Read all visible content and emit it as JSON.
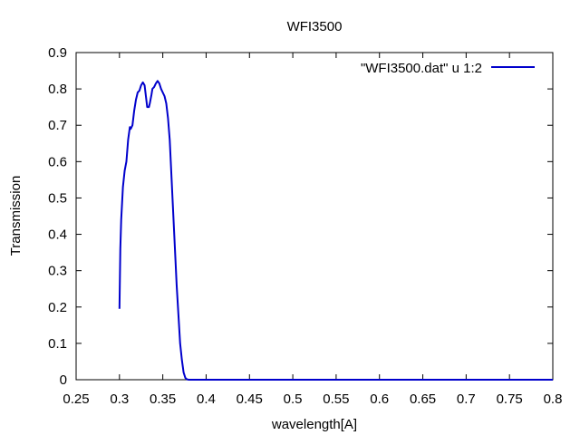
{
  "chart_data": {
    "type": "line",
    "title": "WFI3500",
    "xlabel": "wavelength[A]",
    "ylabel": "Transmission",
    "xlim": [
      0.25,
      0.8
    ],
    "ylim": [
      0,
      0.9
    ],
    "xticks": [
      0.25,
      0.3,
      0.35,
      0.4,
      0.45,
      0.5,
      0.55,
      0.6,
      0.65,
      0.7,
      0.75,
      0.8
    ],
    "xtick_labels": [
      "0.25",
      "0.3",
      "0.35",
      "0.4",
      "0.45",
      "0.5",
      "0.55",
      "0.6",
      "0.65",
      "0.7",
      "0.75",
      "0.8"
    ],
    "yticks": [
      0,
      0.1,
      0.2,
      0.3,
      0.4,
      0.5,
      0.6,
      0.7,
      0.8,
      0.9
    ],
    "ytick_labels": [
      "0",
      "0.1",
      "0.2",
      "0.3",
      "0.4",
      "0.5",
      "0.6",
      "0.7",
      "0.8",
      "0.9"
    ],
    "grid": false,
    "legend_position": "top-right",
    "series": [
      {
        "name": "\"WFI3500.dat\" u 1:2",
        "color": "#0000cc",
        "x": [
          0.3,
          0.301,
          0.302,
          0.304,
          0.306,
          0.308,
          0.31,
          0.312,
          0.313,
          0.315,
          0.317,
          0.319,
          0.321,
          0.323,
          0.325,
          0.327,
          0.329,
          0.331,
          0.332,
          0.334,
          0.335,
          0.337,
          0.338,
          0.34,
          0.342,
          0.344,
          0.346,
          0.348,
          0.35,
          0.352,
          0.354,
          0.356,
          0.358,
          0.36,
          0.362,
          0.364,
          0.366,
          0.368,
          0.37,
          0.372,
          0.374,
          0.376,
          0.378,
          0.38,
          0.382,
          0.384,
          0.386,
          0.388,
          0.39,
          0.392,
          0.395,
          0.4,
          0.45,
          0.5,
          0.55,
          0.6,
          0.65,
          0.7,
          0.75,
          0.8
        ],
        "y": [
          0.195,
          0.36,
          0.44,
          0.53,
          0.575,
          0.6,
          0.66,
          0.695,
          0.69,
          0.7,
          0.74,
          0.77,
          0.79,
          0.795,
          0.81,
          0.818,
          0.81,
          0.77,
          0.75,
          0.75,
          0.76,
          0.785,
          0.8,
          0.805,
          0.815,
          0.822,
          0.815,
          0.8,
          0.79,
          0.78,
          0.76,
          0.72,
          0.66,
          0.56,
          0.46,
          0.36,
          0.26,
          0.18,
          0.1,
          0.055,
          0.02,
          0.005,
          0.001,
          0.0,
          0.0,
          0.0,
          0.0,
          0.0,
          0.0,
          0.0,
          0.0,
          0.0,
          0.0,
          0.0,
          0.0,
          0.0,
          0.0,
          0.0,
          0.0,
          0.0
        ]
      }
    ]
  }
}
